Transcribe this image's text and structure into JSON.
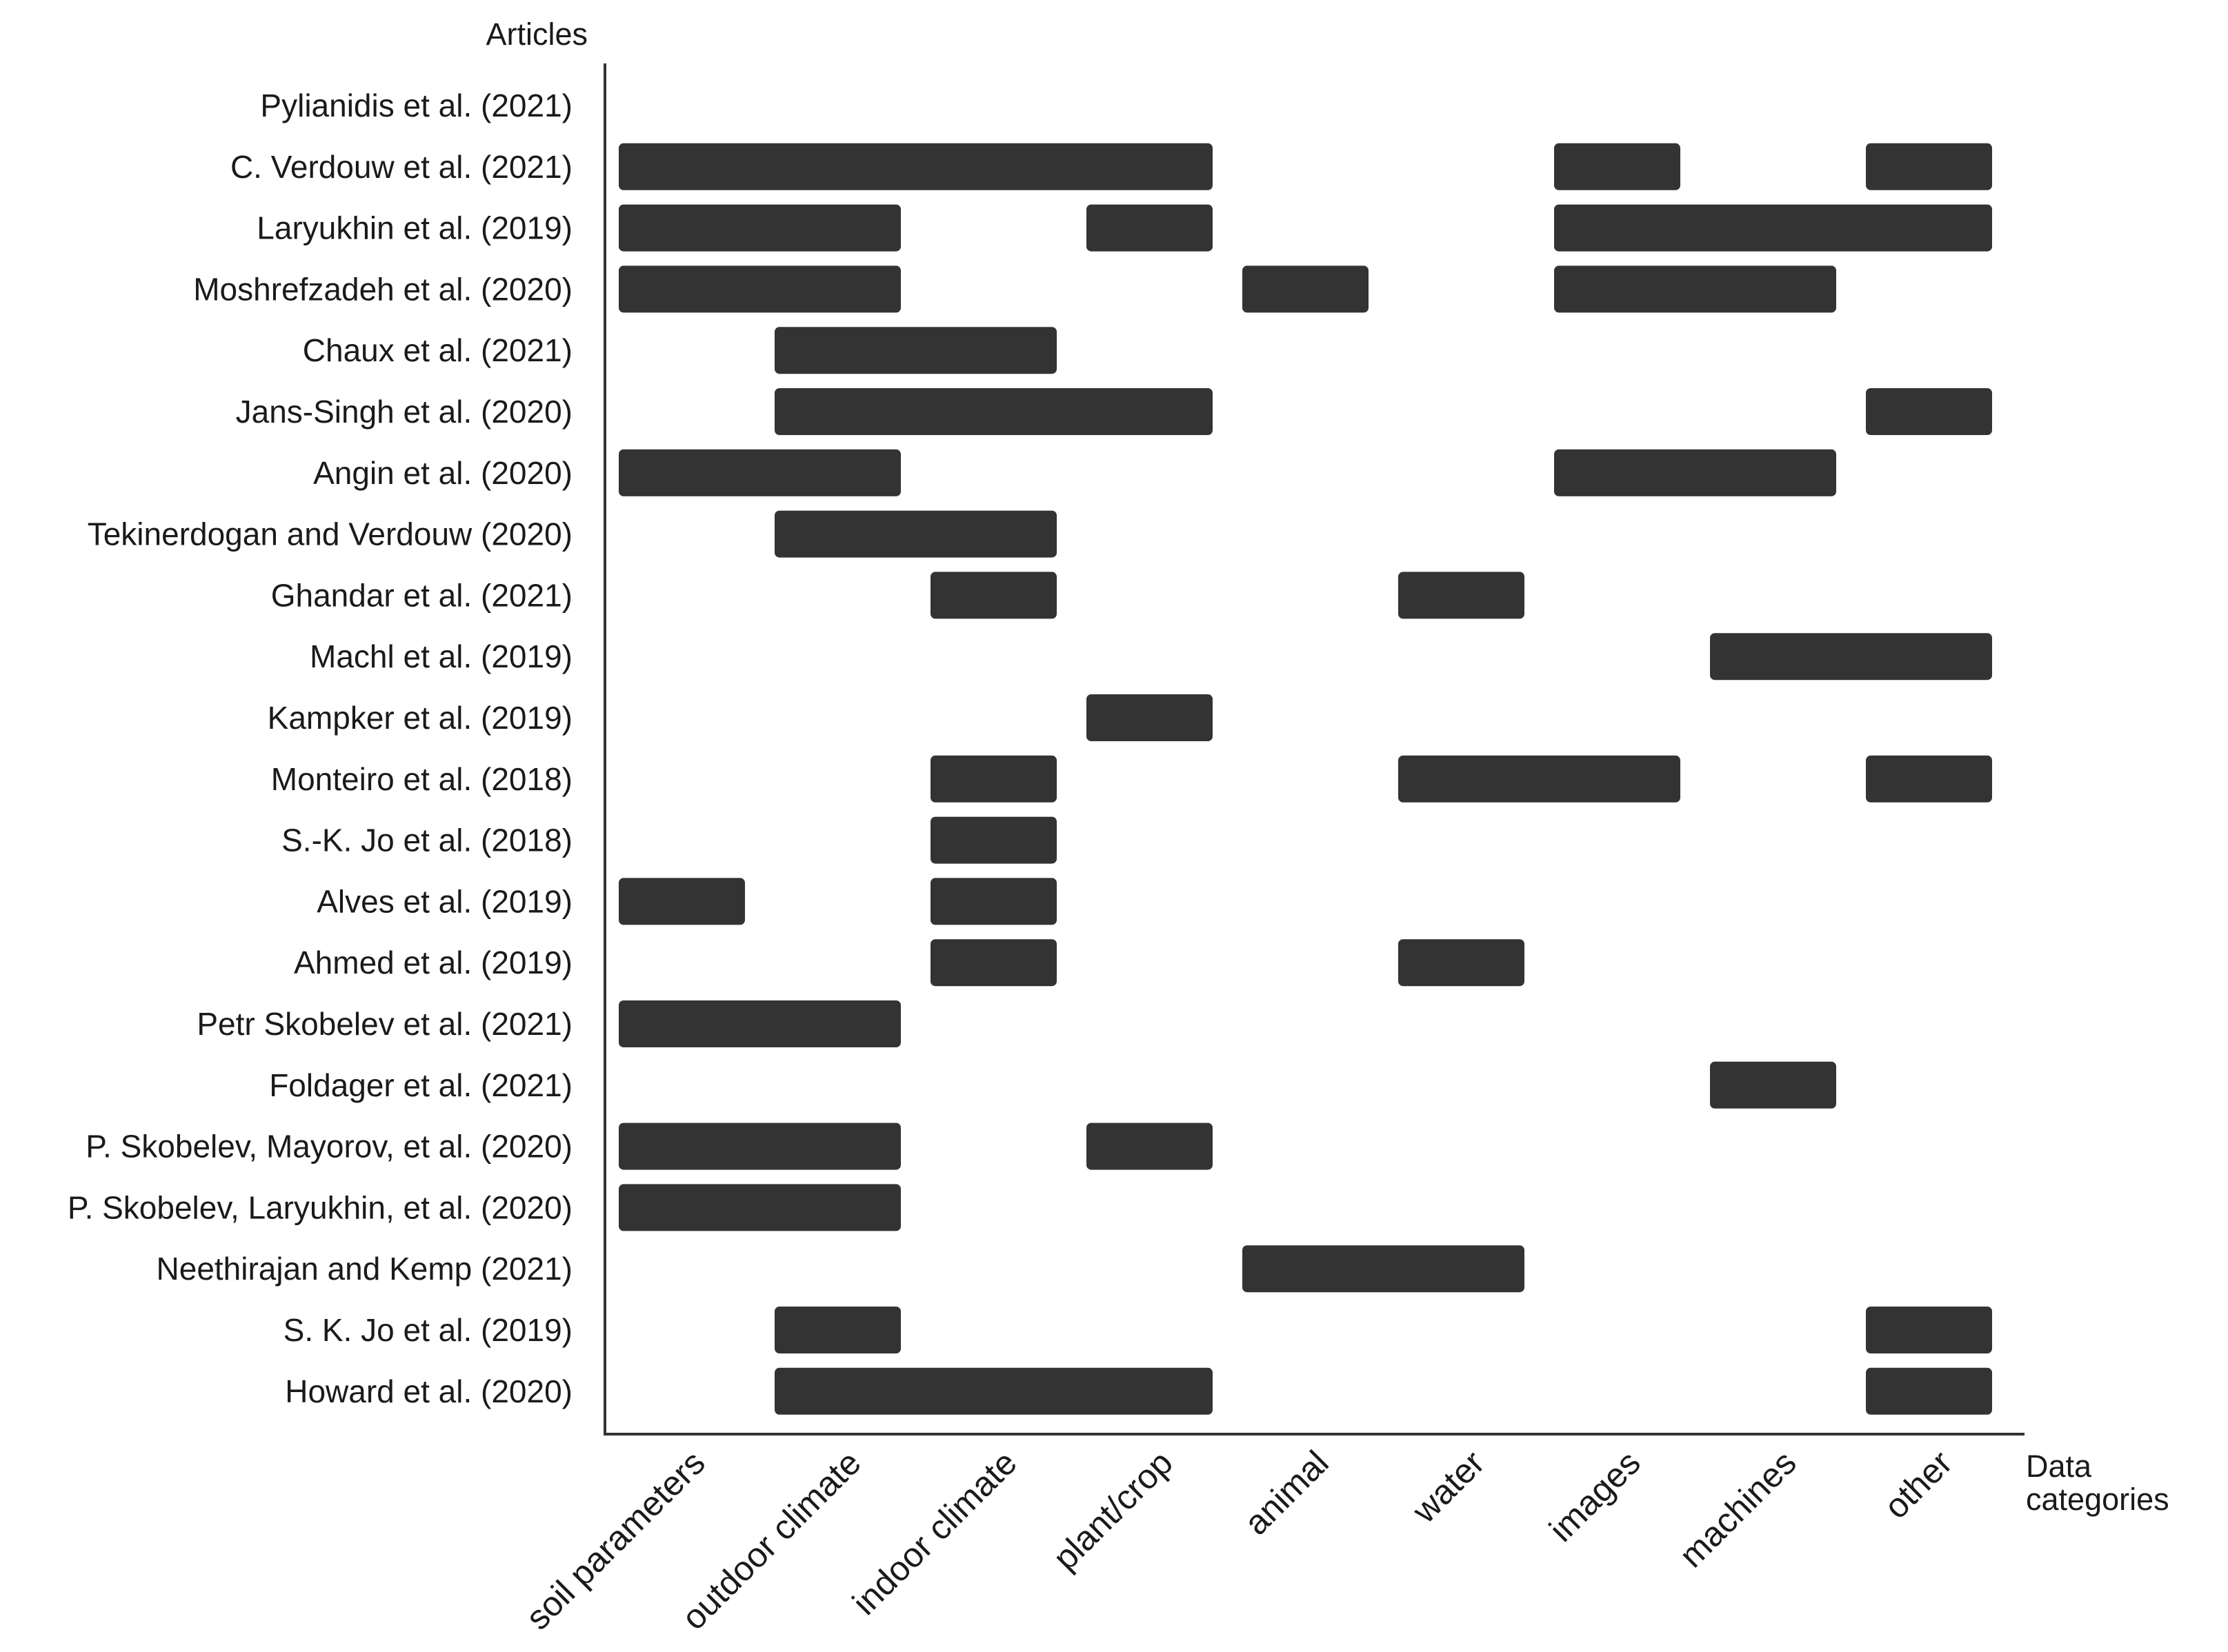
{
  "chart_data": {
    "type": "heatmap",
    "title": "",
    "ylabel": "Articles",
    "xlabel": [
      "Data",
      "categories"
    ],
    "bar_color": "#333333",
    "categories": [
      "soil parameters",
      "outdoor climate",
      "indoor climate",
      "plant/crop",
      "animal",
      "water",
      "images",
      "machines",
      "other"
    ],
    "articles": [
      {
        "name": "Pylianidis et al. (2021)",
        "categories": []
      },
      {
        "name": "C. Verdouw et al. (2021)",
        "categories": [
          "soil parameters",
          "outdoor climate",
          "indoor climate",
          "plant/crop",
          "images",
          "other"
        ]
      },
      {
        "name": "Laryukhin et al. (2019)",
        "categories": [
          "soil parameters",
          "outdoor climate",
          "plant/crop",
          "images",
          "machines",
          "other"
        ]
      },
      {
        "name": "Moshrefzadeh et al. (2020)",
        "categories": [
          "soil parameters",
          "outdoor climate",
          "animal",
          "images",
          "machines"
        ]
      },
      {
        "name": "Chaux et al. (2021)",
        "categories": [
          "outdoor climate",
          "indoor climate"
        ]
      },
      {
        "name": "Jans-Singh et al. (2020)",
        "categories": [
          "outdoor climate",
          "indoor climate",
          "plant/crop",
          "other"
        ]
      },
      {
        "name": "Angin et al. (2020)",
        "categories": [
          "soil parameters",
          "outdoor climate",
          "images",
          "machines"
        ]
      },
      {
        "name": "Tekinerdogan and Verdouw (2020)",
        "categories": [
          "outdoor climate",
          "indoor climate"
        ]
      },
      {
        "name": "Ghandar et al. (2021)",
        "categories": [
          "indoor climate",
          "water"
        ]
      },
      {
        "name": "Machl et al. (2019)",
        "categories": [
          "machines",
          "other"
        ]
      },
      {
        "name": "Kampker et al. (2019)",
        "categories": [
          "plant/crop"
        ]
      },
      {
        "name": "Monteiro et al. (2018)",
        "categories": [
          "indoor climate",
          "water",
          "images",
          "other"
        ]
      },
      {
        "name": "S.-K. Jo et al. (2018)",
        "categories": [
          "indoor climate"
        ]
      },
      {
        "name": "Alves et al. (2019)",
        "categories": [
          "soil parameters",
          "indoor climate"
        ]
      },
      {
        "name": "Ahmed et al. (2019)",
        "categories": [
          "indoor climate",
          "water"
        ]
      },
      {
        "name": "Petr Skobelev et al. (2021)",
        "categories": [
          "soil parameters",
          "outdoor climate"
        ]
      },
      {
        "name": "Foldager et al. (2021)",
        "categories": [
          "machines"
        ]
      },
      {
        "name": "P. Skobelev, Mayorov, et al. (2020)",
        "categories": [
          "soil parameters",
          "outdoor climate",
          "plant/crop"
        ]
      },
      {
        "name": "P. Skobelev, Laryukhin, et al. (2020)",
        "categories": [
          "soil parameters",
          "outdoor climate"
        ]
      },
      {
        "name": "Neethirajan and Kemp (2021)",
        "categories": [
          "animal",
          "water"
        ]
      },
      {
        "name": "S. K. Jo et al. (2019)",
        "categories": [
          "outdoor climate",
          "other"
        ]
      },
      {
        "name": "Howard et al. (2020)",
        "categories": [
          "outdoor climate",
          "indoor climate",
          "plant/crop",
          "other"
        ]
      }
    ]
  }
}
